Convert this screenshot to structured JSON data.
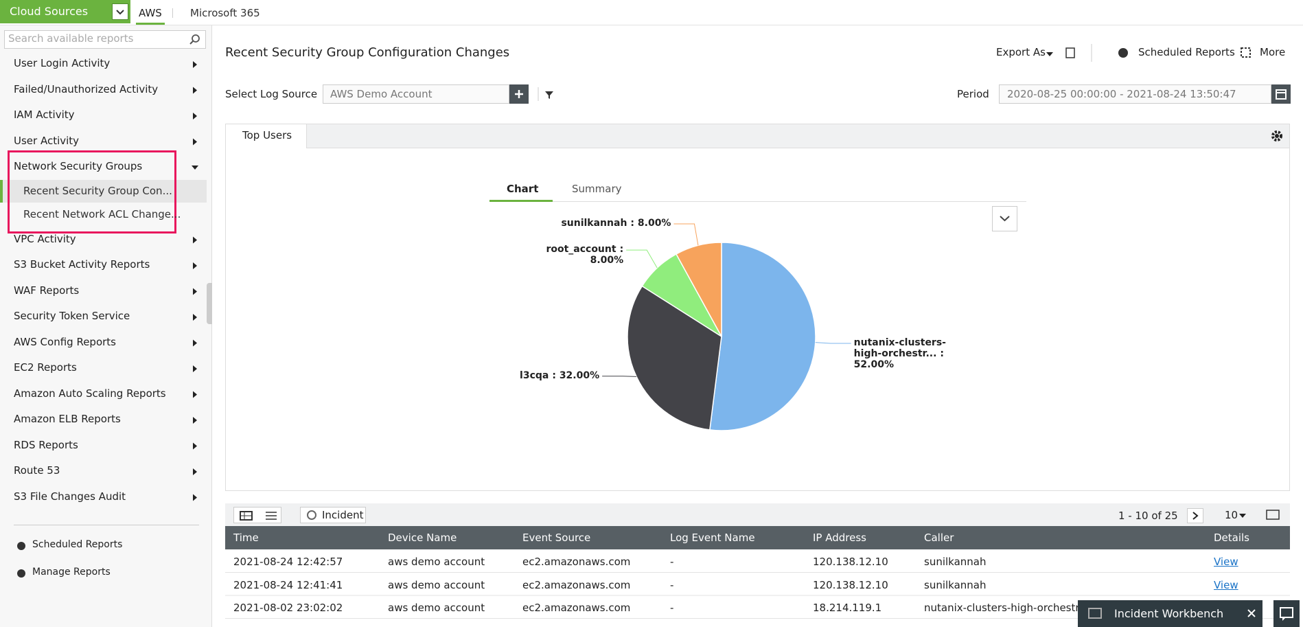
{
  "top_bar": {
    "product_menu": "Cloud Sources",
    "tabs": [
      "AWS",
      "Microsoft 365"
    ]
  },
  "sidebar": {
    "search_placeholder": "Search available reports",
    "items": [
      {
        "label": "User Login Activity"
      },
      {
        "label": "Failed/Unauthorized Activity"
      },
      {
        "label": "IAM Activity"
      },
      {
        "label": "User Activity"
      },
      {
        "label": "Network Security Groups",
        "children": [
          "Recent Security Group Con...",
          "Recent Network ACL Change..."
        ]
      },
      {
        "label": "VPC Activity"
      },
      {
        "label": "S3 Bucket Activity Reports"
      },
      {
        "label": "WAF Reports"
      },
      {
        "label": "Security Token Service"
      },
      {
        "label": "AWS Config Reports"
      },
      {
        "label": "EC2 Reports"
      },
      {
        "label": "Amazon Auto Scaling Reports"
      },
      {
        "label": "Amazon ELB Reports"
      },
      {
        "label": "RDS Reports"
      },
      {
        "label": "Route 53"
      },
      {
        "label": "S3 File Changes Audit"
      }
    ],
    "footer": [
      "Scheduled Reports",
      "Manage Reports"
    ]
  },
  "header": {
    "title": "Recent Security Group Configuration Changes",
    "export": "Export As",
    "scheduled": "Scheduled Reports",
    "more": "More"
  },
  "filters": {
    "log_source_label": "Select Log Source",
    "log_source": "AWS Demo Account",
    "period_label": "Period",
    "period": "2020-08-25 00:00:00 - 2021-08-24 13:50:47"
  },
  "panel_tab": "Top Users",
  "view_tabs": [
    "Chart",
    "Summary"
  ],
  "chart_data": {
    "type": "pie",
    "categories": [
      "nutanix-clusters-high-orchestr...",
      "l3cqa",
      "root_account",
      "sunilkannah"
    ],
    "values": [
      52,
      32,
      8,
      8
    ],
    "value_labels": [
      ": 52.00%",
      ": 32.00%",
      ": 8.00%",
      ": 8.00%"
    ],
    "colors": [
      "#7cb5ec",
      "#434348",
      "#90ed7d",
      "#f7a35c"
    ]
  },
  "table": {
    "incident": "Incident",
    "pager": "1 - 10 of 25",
    "page_size": 10,
    "columns": [
      "Time",
      "Device Name",
      "Event Source",
      "Log Event Name",
      "IP Address",
      "Caller",
      "Details"
    ],
    "rows": [
      [
        "2021-08-24 12:42:57",
        "aws demo account",
        "ec2.amazonaws.com",
        "-",
        "120.138.12.10",
        "sunilkannah",
        "View"
      ],
      [
        "2021-08-24 12:41:41",
        "aws demo account",
        "ec2.amazonaws.com",
        "-",
        "120.138.12.10",
        "sunilkannah",
        "View"
      ],
      [
        "2021-08-02 23:02:02",
        "aws demo account",
        "ec2.amazonaws.com",
        "-",
        "18.214.119.1",
        "nutanix-clusters-high-orchestrat",
        ""
      ]
    ]
  },
  "workbench": "Incident Workbench"
}
